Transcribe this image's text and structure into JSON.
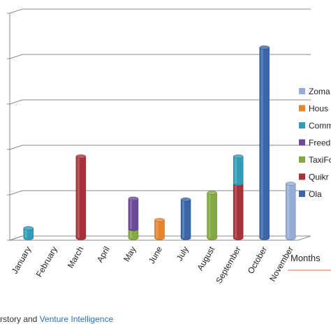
{
  "chart_data": {
    "type": "bar",
    "stacked": true,
    "style": "3d-cylinder",
    "categories": [
      "January",
      "February",
      "March",
      "April",
      "May",
      "June",
      "July",
      "August",
      "September",
      "October",
      "November"
    ],
    "series": [
      {
        "name": "Ola",
        "color": "#3a66a8",
        "values": [
          0,
          0,
          0,
          0,
          0,
          0,
          0.85,
          0,
          0,
          4.2,
          0
        ]
      },
      {
        "name": "Quikr",
        "color": "#a8323a",
        "values": [
          0,
          0,
          1.8,
          0,
          0,
          0,
          0,
          0,
          1.2,
          0,
          0
        ]
      },
      {
        "name": "TaxiFo",
        "color": "#84a940",
        "values": [
          0,
          0,
          0,
          0,
          0.2,
          0,
          0,
          1.0,
          0,
          0,
          0
        ]
      },
      {
        "name": "Freed",
        "color": "#6c4a9a",
        "values": [
          0,
          0,
          0,
          0,
          0.67,
          0,
          0,
          0,
          0,
          0,
          0
        ]
      },
      {
        "name": "Comm",
        "color": "#2f9cb8",
        "values": [
          0.22,
          0,
          0,
          0,
          0,
          0,
          0,
          0,
          0.6,
          0,
          0
        ]
      },
      {
        "name": "Hous",
        "color": "#e8842c",
        "values": [
          0,
          0,
          0,
          0,
          0,
          0.4,
          0,
          0,
          0,
          0,
          0
        ]
      },
      {
        "name": "Zoma",
        "color": "#95acd6",
        "values": [
          0,
          0,
          0,
          0,
          0,
          0,
          0,
          0,
          0,
          0,
          1.2
        ]
      }
    ],
    "legend_order": [
      "Zoma",
      "Hous",
      "Comm",
      "Freed",
      "TaxiFo",
      "Quikr",
      "Ola"
    ],
    "xlabel": "Months",
    "ylim": [
      0,
      5
    ],
    "grid": true,
    "legend_position": "right"
  },
  "source": {
    "prefix": "rstory and ",
    "link": "Venture Intelligence"
  }
}
